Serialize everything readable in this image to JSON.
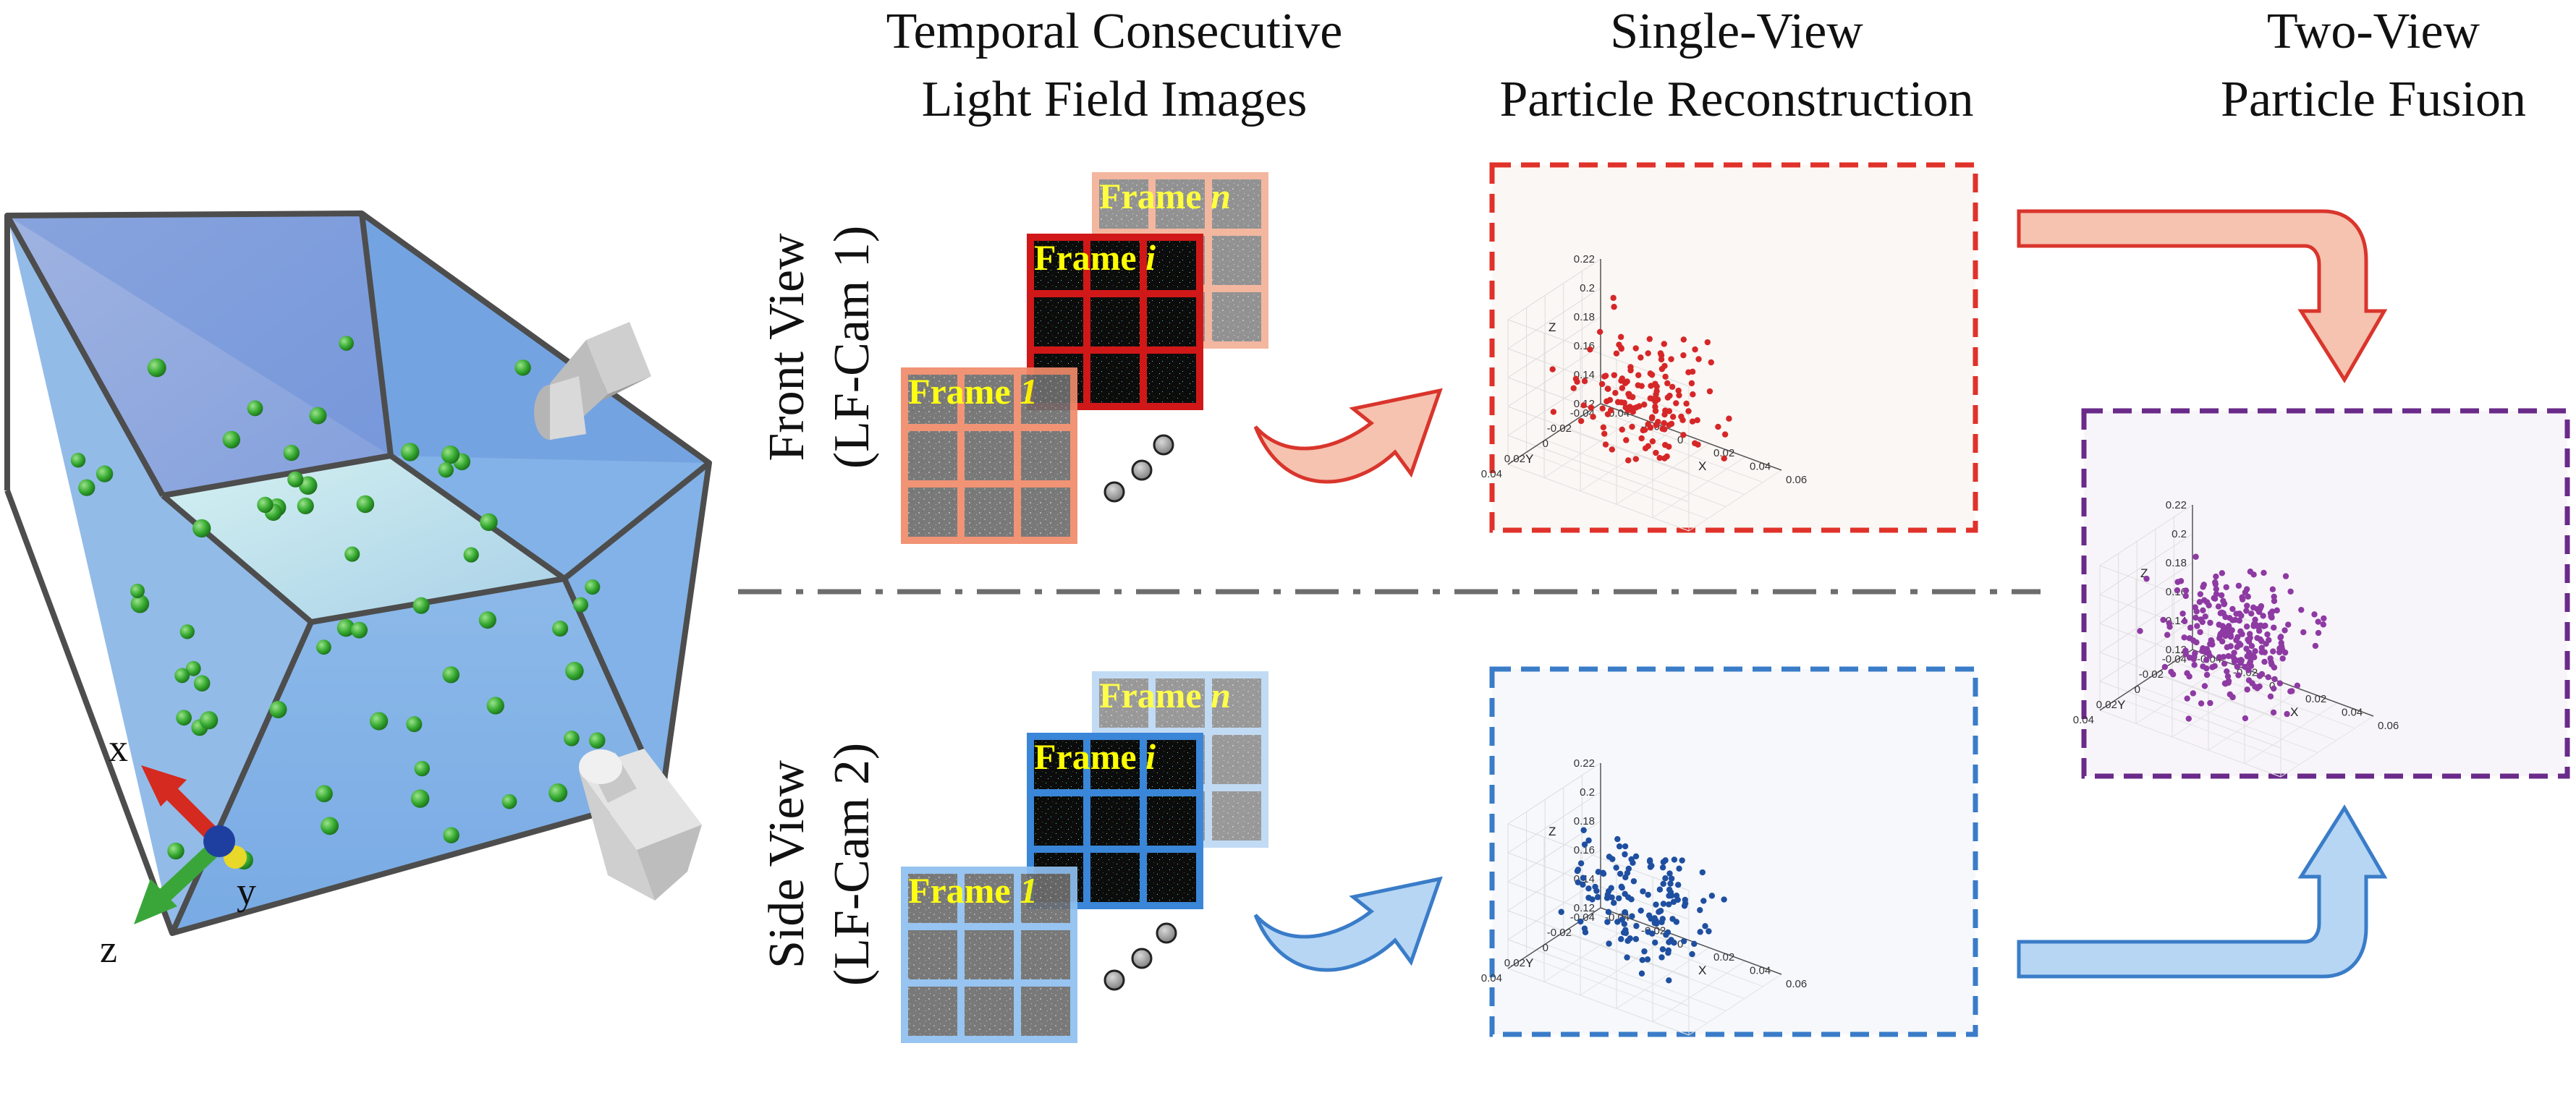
{
  "headers": {
    "col1": [
      "Temporal Consecutive",
      "Light Field Images"
    ],
    "col2": [
      "Single-View",
      "Particle Reconstruction"
    ],
    "col3": [
      "Two-View",
      "Particle Fusion"
    ]
  },
  "rows": {
    "front": [
      "Front View",
      "(LF-Cam 1)"
    ],
    "side": [
      "Side View",
      "(LF-Cam 2)"
    ]
  },
  "frames": {
    "prefix": "Frame",
    "first": "1",
    "mid": "i",
    "last": "n"
  },
  "axes": {
    "x": "x",
    "y": "y",
    "z": "z"
  },
  "plot": {
    "z_ticks": [
      "0.22",
      "0.2",
      "0.18",
      "0.16",
      "0.14",
      "0.12"
    ],
    "y_ticks": [
      "0.04",
      "0.02",
      "0",
      "-0.02",
      "-0.04"
    ],
    "x_ticks": [
      "-0.04",
      "-0.02",
      "0",
      "0.02",
      "0.04",
      "0.06"
    ],
    "xlabel": "X",
    "ylabel": "Y",
    "zlabel": "Z"
  },
  "colors": {
    "front": "#d62728",
    "side": "#1f4fa0",
    "fusion": "#8e3aa3",
    "front_border": "#e0322a",
    "side_border": "#3a7cc8",
    "fusion_border": "#6a2a8a",
    "front_arrow": "#f2b8a4",
    "side_arrow": "#a9cdf0"
  },
  "chart_data": [
    {
      "type": "scatter",
      "title": "",
      "series": [
        {
          "name": "",
          "x": [],
          "y": [],
          "z": []
        }
      ],
      "xlabel": "X",
      "ylabel": "Y",
      "zlabel": "Z",
      "xlim": [
        -0.04,
        0.06
      ],
      "ylim": [
        -0.04,
        0.04
      ],
      "zlim": [
        0.12,
        0.22
      ],
      "grid": true
    },
    {
      "type": "scatter",
      "title": "",
      "series": [
        {
          "name": "",
          "x": [],
          "y": [],
          "z": []
        }
      ],
      "xlabel": "X",
      "ylabel": "Y",
      "zlabel": "Z",
      "xlim": [
        -0.04,
        0.06
      ],
      "ylim": [
        -0.04,
        0.04
      ],
      "zlim": [
        0.12,
        0.22
      ],
      "grid": true
    },
    {
      "type": "scatter",
      "title": "",
      "series": [
        {
          "name": "",
          "x": [],
          "y": [],
          "z": []
        }
      ],
      "xlabel": "X",
      "ylabel": "Y",
      "zlabel": "Z",
      "xlim": [
        -0.04,
        0.06
      ],
      "ylim": [
        -0.04,
        0.04
      ],
      "zlim": [
        0.12,
        0.22
      ],
      "grid": true
    }
  ]
}
